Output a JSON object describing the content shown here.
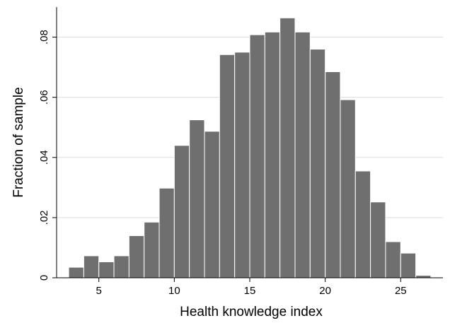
{
  "chart_data": {
    "type": "bar",
    "subtype": "histogram",
    "title": "",
    "xlabel": "Health knowledge index",
    "ylabel": "Fraction of sample",
    "xlim": [
      2.2,
      27.8
    ],
    "ylim": [
      0,
      0.09
    ],
    "xticks": [
      5,
      10,
      15,
      20,
      25
    ],
    "xtick_labels": [
      "5",
      "10",
      "15",
      "20",
      "25"
    ],
    "yticks": [
      0,
      0.02,
      0.04,
      0.06,
      0.08
    ],
    "ytick_labels": [
      "0",
      ".02",
      ".04",
      ".06",
      ".08"
    ],
    "grid": true,
    "legend": "none",
    "bar_color": "#6f6f6f",
    "bin_width": 1,
    "bins": [
      3,
      4,
      5,
      6,
      7,
      8,
      9,
      10,
      11,
      12,
      13,
      14,
      15,
      16,
      17,
      18,
      19,
      20,
      21,
      22,
      23,
      24,
      25,
      26
    ],
    "values": [
      0.0035,
      0.0073,
      0.0053,
      0.0073,
      0.014,
      0.0185,
      0.0298,
      0.044,
      0.0525,
      0.0487,
      0.0742,
      0.075,
      0.0808,
      0.0817,
      0.0864,
      0.0817,
      0.076,
      0.0685,
      0.0592,
      0.0355,
      0.0252,
      0.012,
      0.0082,
      0.0008
    ]
  }
}
